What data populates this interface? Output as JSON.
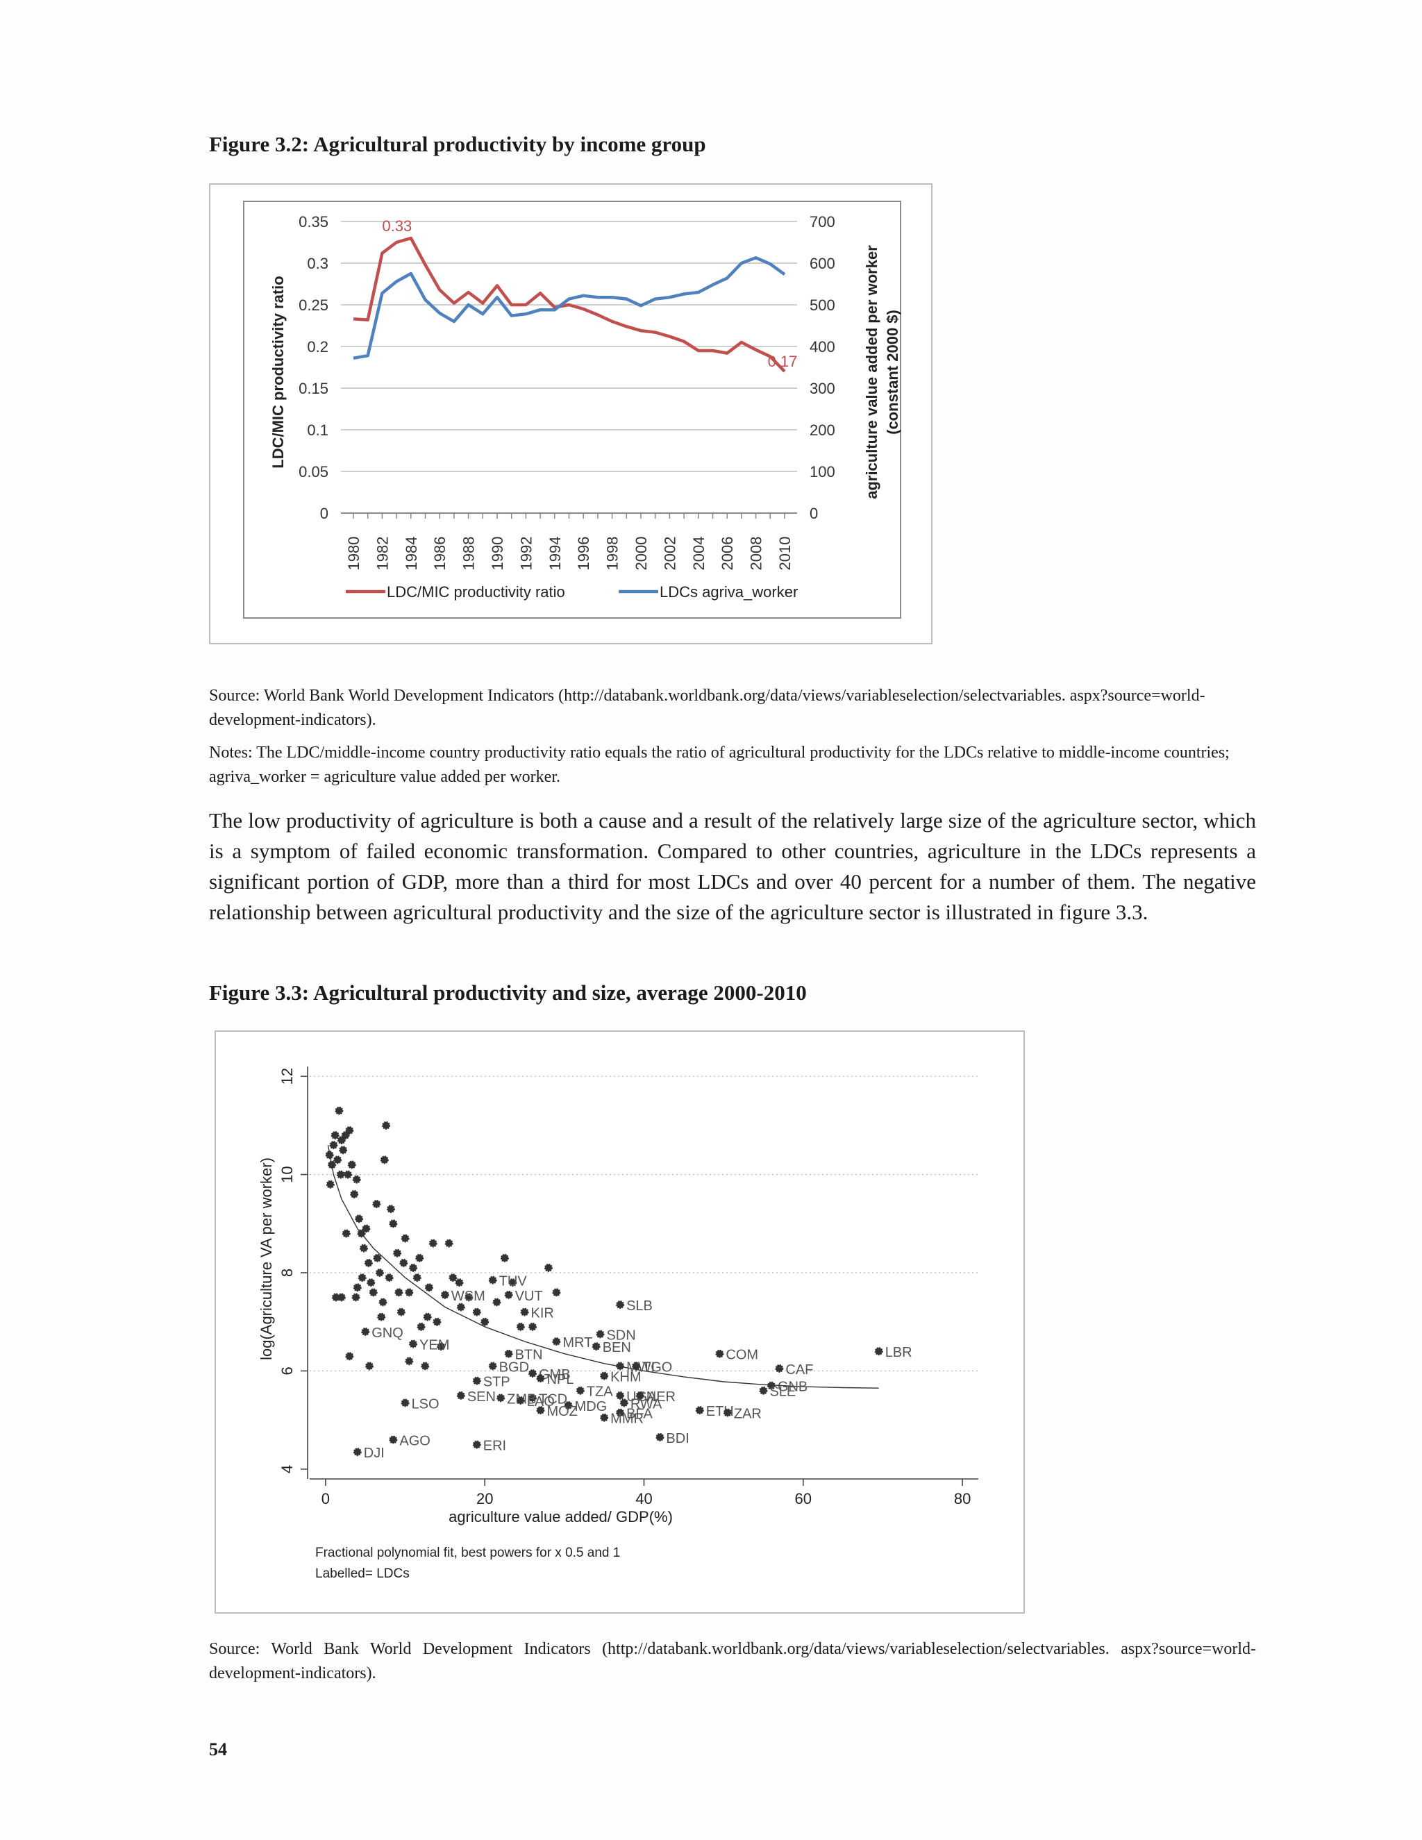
{
  "fig32": {
    "title": "Figure 3.2: Agricultural productivity by income group",
    "chart_data": {
      "type": "line",
      "x": [
        1980,
        1981,
        1982,
        1983,
        1984,
        1985,
        1986,
        1987,
        1988,
        1989,
        1990,
        1991,
        1992,
        1993,
        1994,
        1995,
        1996,
        1997,
        1998,
        1999,
        2000,
        2001,
        2002,
        2003,
        2004,
        2005,
        2006,
        2007,
        2008,
        2009,
        2010
      ],
      "x_tick_labels": [
        "1980",
        "1982",
        "1984",
        "1986",
        "1988",
        "1990",
        "1992",
        "1994",
        "1996",
        "1998",
        "2000",
        "2002",
        "2004",
        "2006",
        "2008",
        "2010"
      ],
      "ylabel_left": "LDC/MIC productivity ratio",
      "ylabel_right_line1": "agriculture value added per worker",
      "ylabel_right_line2": "(constant 2000 $)",
      "ylim_left": [
        0,
        0.35
      ],
      "ylim_right": [
        0,
        700
      ],
      "y_ticks_left": [
        "0",
        "0.05",
        "0.1",
        "0.15",
        "0.2",
        "0.25",
        "0.3",
        "0.35"
      ],
      "y_ticks_right": [
        "0",
        "100",
        "200",
        "300",
        "400",
        "500",
        "600",
        "700"
      ],
      "series": [
        {
          "name": "LDC/MIC productivity ratio",
          "axis": "left",
          "color": "#c0504d",
          "values": [
            0.233,
            0.232,
            0.312,
            0.325,
            0.33,
            0.298,
            0.268,
            0.252,
            0.265,
            0.252,
            0.273,
            0.25,
            0.25,
            0.264,
            0.247,
            0.25,
            0.245,
            0.238,
            0.23,
            0.224,
            0.219,
            0.217,
            0.212,
            0.206,
            0.195,
            0.195,
            0.192,
            0.205,
            0.196,
            0.188,
            0.17
          ]
        },
        {
          "name": "LDCs agriva_worker",
          "axis": "right",
          "color": "#4f81bd",
          "values": [
            372,
            378,
            528,
            556,
            575,
            512,
            480,
            460,
            500,
            478,
            518,
            474,
            478,
            488,
            488,
            514,
            522,
            518,
            518,
            514,
            498,
            514,
            518,
            526,
            530,
            548,
            564,
            600,
            613,
            598,
            573
          ]
        }
      ],
      "annotations": [
        "0.33",
        "0.17"
      ],
      "grid": true,
      "legend": "bottom"
    }
  },
  "source1": "Source: World Bank World Development Indicators (http://databank.worldbank.org/data/views/variableselection/selectvariables. aspx?source=world-development-indicators).",
  "notes1": "Notes: The LDC/middle-income country productivity ratio equals the ratio of agricultural productivity for the LDCs relative to middle-income countries; agriva_worker = agriculture value added per worker.",
  "paragraph": "The low productivity of agriculture is both a cause and a result of the relatively large size of the agriculture sector, which is a symptom of failed economic transformation. Compared to other countries, agriculture in the LDCs represents a significant portion of GDP, more than a third for most LDCs and over 40 percent for a number of them. The negative relationship between agricultural productivity and the size of the agriculture sector is illustrated in figure 3.3.",
  "fig33": {
    "title": "Figure 3.3: Agricultural productivity and size, average 2000-2010",
    "chart_data": {
      "type": "scatter",
      "xlabel": "agriculture value added/ GDP(%)",
      "ylabel": "log(Agriculture VA per worker)",
      "xlim": [
        -2,
        82
      ],
      "ylim": [
        3.8,
        12.2
      ],
      "x_ticks": [
        "0",
        "20",
        "40",
        "60",
        "80"
      ],
      "y_ticks": [
        "4",
        "6",
        "8",
        "10",
        "12"
      ],
      "grid": true,
      "note1": "Fractional polynomial fit, best powers for x 0.5 and 1",
      "note2": "Labelled= LDCs",
      "fit": [
        [
          0.3,
          10.6
        ],
        [
          1,
          10.0
        ],
        [
          2,
          9.5
        ],
        [
          4,
          8.9
        ],
        [
          6,
          8.5
        ],
        [
          10,
          7.9
        ],
        [
          15,
          7.3
        ],
        [
          20,
          6.9
        ],
        [
          25,
          6.6
        ],
        [
          30,
          6.35
        ],
        [
          35,
          6.15
        ],
        [
          40,
          6.0
        ],
        [
          45,
          5.88
        ],
        [
          50,
          5.78
        ],
        [
          55,
          5.72
        ],
        [
          60,
          5.68
        ],
        [
          65,
          5.66
        ],
        [
          69.5,
          5.65
        ]
      ],
      "labelled_points": [
        {
          "label": "LBR",
          "x": 69.5,
          "y": 6.4
        },
        {
          "label": "COM",
          "x": 49.5,
          "y": 6.35
        },
        {
          "label": "CAF",
          "x": 57,
          "y": 6.05
        },
        {
          "label": "GNB",
          "x": 56,
          "y": 5.7
        },
        {
          "label": "SLE",
          "x": 55,
          "y": 5.6
        },
        {
          "label": "ETH",
          "x": 47,
          "y": 5.2
        },
        {
          "label": "ZAR",
          "x": 50.5,
          "y": 5.15
        },
        {
          "label": "BDI",
          "x": 42,
          "y": 4.65
        },
        {
          "label": "SLB",
          "x": 37,
          "y": 7.35
        },
        {
          "label": "SDN",
          "x": 34.5,
          "y": 6.75
        },
        {
          "label": "BEN",
          "x": 34,
          "y": 6.5
        },
        {
          "label": "MRT",
          "x": 29,
          "y": 6.6
        },
        {
          "label": "MWI",
          "x": 37,
          "y": 6.1
        },
        {
          "label": "TGO",
          "x": 39,
          "y": 6.1
        },
        {
          "label": "KHM",
          "x": 35,
          "y": 5.9
        },
        {
          "label": "TZA",
          "x": 32,
          "y": 5.6
        },
        {
          "label": "UGA",
          "x": 37,
          "y": 5.5
        },
        {
          "label": "NER",
          "x": 39.5,
          "y": 5.5
        },
        {
          "label": "RWA",
          "x": 37.5,
          "y": 5.35
        },
        {
          "label": "BFA",
          "x": 37,
          "y": 5.15
        },
        {
          "label": "MMR",
          "x": 35,
          "y": 5.05
        },
        {
          "label": "MDG",
          "x": 30.5,
          "y": 5.3
        },
        {
          "label": "MOZ",
          "x": 27,
          "y": 5.2
        },
        {
          "label": "TCD",
          "x": 26,
          "y": 5.45
        },
        {
          "label": "GMB",
          "x": 26,
          "y": 5.95
        },
        {
          "label": "NPL",
          "x": 27,
          "y": 5.85
        },
        {
          "label": "BGD",
          "x": 21,
          "y": 6.1
        },
        {
          "label": "BTN",
          "x": 23,
          "y": 6.35
        },
        {
          "label": "STP",
          "x": 19,
          "y": 5.8
        },
        {
          "label": "SEN",
          "x": 17,
          "y": 5.5
        },
        {
          "label": "ZMB",
          "x": 22,
          "y": 5.45
        },
        {
          "label": "LAO",
          "x": 24.5,
          "y": 5.4
        },
        {
          "label": "TUV",
          "x": 21,
          "y": 7.85
        },
        {
          "label": "VUT",
          "x": 23,
          "y": 7.55
        },
        {
          "label": "KIR",
          "x": 25,
          "y": 7.2
        },
        {
          "label": "WSM",
          "x": 15,
          "y": 7.55
        },
        {
          "label": "YEM",
          "x": 11,
          "y": 6.55
        },
        {
          "label": "GNQ",
          "x": 5,
          "y": 6.8
        },
        {
          "label": "LSO",
          "x": 10,
          "y": 5.35
        },
        {
          "label": "AGO",
          "x": 8.5,
          "y": 4.6
        },
        {
          "label": "ERI",
          "x": 19,
          "y": 4.5
        },
        {
          "label": "DJI",
          "x": 4,
          "y": 4.35
        }
      ],
      "other_points": [
        [
          0.5,
          10.4
        ],
        [
          0.8,
          10.2
        ],
        [
          1.0,
          10.6
        ],
        [
          1.2,
          10.8
        ],
        [
          1.5,
          10.3
        ],
        [
          1.7,
          11.3
        ],
        [
          2.0,
          10.7
        ],
        [
          2.2,
          10.5
        ],
        [
          2.5,
          10.8
        ],
        [
          2.8,
          10.0
        ],
        [
          3.0,
          10.9
        ],
        [
          3.3,
          10.2
        ],
        [
          3.6,
          9.6
        ],
        [
          3.9,
          9.9
        ],
        [
          4.2,
          9.1
        ],
        [
          4.5,
          8.8
        ],
        [
          4.8,
          8.5
        ],
        [
          5.1,
          8.9
        ],
        [
          5.4,
          8.2
        ],
        [
          5.7,
          7.8
        ],
        [
          6.0,
          7.6
        ],
        [
          6.4,
          9.4
        ],
        [
          6.8,
          8.0
        ],
        [
          7.2,
          7.4
        ],
        [
          7.6,
          11.0
        ],
        [
          8.0,
          7.9
        ],
        [
          8.5,
          9.0
        ],
        [
          9.0,
          8.4
        ],
        [
          9.5,
          7.2
        ],
        [
          10.0,
          8.7
        ],
        [
          10.5,
          7.6
        ],
        [
          11.0,
          8.1
        ],
        [
          11.5,
          7.9
        ],
        [
          12.0,
          6.9
        ],
        [
          12.5,
          6.1
        ],
        [
          13.0,
          7.7
        ],
        [
          13.5,
          8.6
        ],
        [
          14.0,
          7.0
        ],
        [
          14.5,
          6.5
        ],
        [
          15.5,
          8.6
        ],
        [
          16.0,
          7.9
        ],
        [
          17.0,
          7.3
        ],
        [
          18.0,
          7.5
        ],
        [
          19.0,
          7.2
        ],
        [
          20.0,
          7.0
        ],
        [
          21.5,
          7.4
        ],
        [
          22.5,
          8.3
        ],
        [
          23.5,
          7.8
        ],
        [
          24.5,
          6.9
        ],
        [
          26.0,
          6.9
        ],
        [
          28.0,
          8.1
        ],
        [
          29.0,
          7.6
        ],
        [
          2.0,
          7.5
        ],
        [
          3.0,
          6.3
        ],
        [
          4.0,
          7.7
        ],
        [
          5.5,
          6.1
        ],
        [
          6.5,
          8.3
        ],
        [
          7.0,
          7.1
        ],
        [
          8.2,
          9.3
        ],
        [
          9.8,
          8.2
        ],
        [
          10.5,
          6.2
        ],
        [
          1.3,
          7.5
        ],
        [
          2.6,
          8.8
        ],
        [
          3.8,
          7.5
        ],
        [
          12.8,
          7.1
        ],
        [
          16.8,
          7.8
        ],
        [
          7.4,
          10.3
        ],
        [
          0.6,
          9.8
        ],
        [
          1.9,
          10.0
        ],
        [
          4.6,
          7.9
        ],
        [
          9.2,
          7.6
        ],
        [
          11.8,
          8.3
        ]
      ]
    }
  },
  "source2": "Source: World Bank World Development Indicators (http://databank.worldbank.org/data/views/variableselection/selectvariables. aspx?source=world-development-indicators).",
  "page_number": "54"
}
